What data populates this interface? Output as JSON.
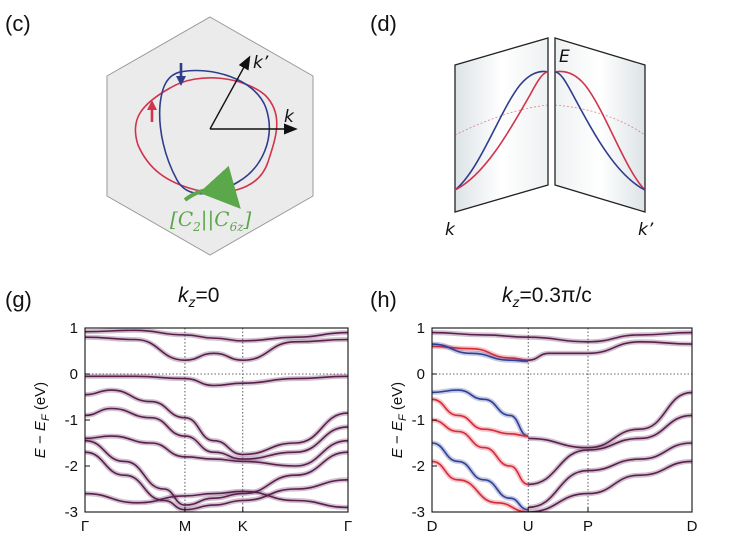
{
  "panel_c": {
    "label": "(c)",
    "k_label": "k",
    "kprime_label": "k’",
    "symmetry_open": "[",
    "symmetry_c2": "C",
    "symmetry_c2_sub": "2",
    "symmetry_sep": "||",
    "symmetry_c6": "C",
    "symmetry_c6_sub": "6z",
    "symmetry_close": "]",
    "colors": {
      "red": "#d1344d",
      "blue": "#2f3d8c",
      "green": "#5aa84a",
      "hexagon_fill": "#ebebeb",
      "hexagon_stroke": "#999999"
    }
  },
  "panel_d": {
    "label": "(d)",
    "e_label": "E",
    "k_label": "k",
    "kprime_label": "k’"
  },
  "panel_g": {
    "label": "(g)",
    "title_k": "k",
    "title_sub": "z",
    "title_rest": "=0",
    "ylabel_e": "E",
    "ylabel_minus": " − ",
    "ylabel_ef": "E",
    "ylabel_ef_sub": "F",
    "ylabel_unit": " (eV)",
    "yticks": [
      "1",
      "0",
      "-1",
      "-2",
      "-3"
    ],
    "xticks": [
      "Γ",
      "M",
      "K",
      "Γ"
    ]
  },
  "panel_h": {
    "label": "(h)",
    "title_k": "k",
    "title_sub": "z",
    "title_rest": "=0.3π/c",
    "ylabel_e": "E",
    "ylabel_minus": " − ",
    "ylabel_ef": "E",
    "ylabel_ef_sub": "F",
    "ylabel_unit": " (eV)",
    "yticks": [
      "1",
      "0",
      "-1",
      "-2",
      "-3"
    ],
    "xticks": [
      "D",
      "U",
      "P",
      "D"
    ]
  },
  "chart_data": [
    {
      "type": "line",
      "ylim": [
        -3,
        1
      ],
      "x_ticks": [
        "Γ",
        "M",
        "K",
        "Γ"
      ],
      "x_tick_positions": [
        0,
        0.38,
        0.6,
        1.0
      ],
      "series": [
        {
          "values_x": [
            0,
            0.19,
            0.38,
            0.49,
            0.6,
            0.8,
            1.0
          ],
          "values": [
            0.8,
            0.75,
            0.3,
            0.45,
            0.3,
            0.7,
            0.75
          ]
        },
        {
          "values_x": [
            0,
            0.19,
            0.38,
            0.49,
            0.6,
            0.8,
            1.0
          ],
          "values": [
            0.92,
            0.95,
            0.85,
            0.78,
            0.72,
            0.8,
            0.9
          ]
        },
        {
          "values_x": [
            0,
            0.19,
            0.38,
            0.49,
            0.6,
            0.8,
            1.0
          ],
          "values": [
            -0.05,
            -0.05,
            -0.1,
            -0.25,
            -0.2,
            -0.1,
            -0.05
          ]
        },
        {
          "values_x": [
            0,
            0.1,
            0.25,
            0.38,
            0.49,
            0.6,
            0.8,
            1.0
          ],
          "values": [
            -0.45,
            -0.35,
            -0.6,
            -0.95,
            -1.45,
            -1.75,
            -1.5,
            -0.85
          ]
        },
        {
          "values_x": [
            0,
            0.1,
            0.25,
            0.38,
            0.49,
            0.6,
            0.8,
            1.0
          ],
          "values": [
            -0.9,
            -0.75,
            -0.95,
            -1.35,
            -1.7,
            -1.85,
            -1.7,
            -1.15
          ]
        },
        {
          "values_x": [
            0,
            0.1,
            0.25,
            0.38,
            0.49,
            0.6,
            0.8,
            1.0
          ],
          "values": [
            -1.4,
            -1.35,
            -1.5,
            -1.8,
            -1.85,
            -1.9,
            -2.0,
            -1.45
          ]
        },
        {
          "values_x": [
            0,
            0.15,
            0.3,
            0.38,
            0.49,
            0.6,
            0.8,
            1.0
          ],
          "values": [
            -1.45,
            -1.9,
            -2.5,
            -2.85,
            -2.7,
            -2.6,
            -2.2,
            -1.7
          ]
        },
        {
          "values_x": [
            0,
            0.15,
            0.3,
            0.38,
            0.49,
            0.6,
            0.8,
            1.0
          ],
          "values": [
            -1.7,
            -2.2,
            -2.75,
            -2.95,
            -2.85,
            -2.75,
            -2.5,
            -2.3
          ]
        },
        {
          "values_x": [
            0,
            0.2,
            0.38,
            0.49,
            0.6,
            0.8,
            1.0
          ],
          "values": [
            -2.6,
            -2.8,
            -2.65,
            -2.6,
            -2.55,
            -2.75,
            -2.9
          ]
        }
      ]
    },
    {
      "type": "line",
      "ylim": [
        -3,
        1
      ],
      "x_ticks": [
        "D",
        "U",
        "P",
        "D"
      ],
      "x_tick_positions": [
        0,
        0.37,
        0.6,
        1.0
      ],
      "series": [
        {
          "name_color": "red",
          "values_x": [
            0,
            0.15,
            0.3,
            0.37
          ],
          "values": [
            0.6,
            0.55,
            0.35,
            0.3
          ]
        },
        {
          "name_color": "blue",
          "values_x": [
            0,
            0.15,
            0.3,
            0.37
          ],
          "values": [
            0.65,
            0.45,
            0.3,
            0.28
          ]
        },
        {
          "values_x": [
            0.37,
            0.45,
            0.6,
            0.8,
            1.0
          ],
          "values": [
            0.3,
            0.45,
            0.45,
            0.7,
            0.65
          ]
        },
        {
          "values_x": [
            0,
            0.2,
            0.37,
            0.6,
            0.8,
            1.0
          ],
          "values": [
            0.9,
            0.85,
            0.8,
            0.7,
            0.85,
            0.9
          ]
        },
        {
          "name_color": "blue",
          "values_x": [
            0,
            0.1,
            0.2,
            0.3,
            0.37
          ],
          "values": [
            -0.4,
            -0.35,
            -0.55,
            -0.9,
            -1.35
          ]
        },
        {
          "name_color": "red",
          "values_x": [
            0,
            0.1,
            0.2,
            0.3,
            0.37
          ],
          "values": [
            -0.55,
            -0.9,
            -1.2,
            -1.3,
            -1.35
          ]
        },
        {
          "name_color": "red",
          "values_x": [
            0,
            0.1,
            0.2,
            0.3,
            0.37
          ],
          "values": [
            -1.0,
            -1.25,
            -1.6,
            -2.0,
            -2.4
          ]
        },
        {
          "name_color": "blue",
          "values_x": [
            0,
            0.1,
            0.2,
            0.3,
            0.37
          ],
          "values": [
            -1.5,
            -1.9,
            -2.3,
            -2.7,
            -2.95
          ]
        },
        {
          "name_color": "red",
          "values_x": [
            0,
            0.1,
            0.25,
            0.37
          ],
          "values": [
            -1.9,
            -2.3,
            -2.8,
            -3.0
          ]
        },
        {
          "values_x": [
            0.37,
            0.6,
            0.8,
            1.0
          ],
          "values": [
            -1.4,
            -1.6,
            -1.2,
            -0.4
          ]
        },
        {
          "values_x": [
            0.37,
            0.6,
            0.8,
            1.0
          ],
          "values": [
            -2.4,
            -1.65,
            -1.4,
            -0.9
          ]
        },
        {
          "values_x": [
            0.37,
            0.6,
            0.8,
            1.0
          ],
          "values": [
            -2.9,
            -2.1,
            -1.85,
            -1.5
          ]
        },
        {
          "values_x": [
            0.37,
            0.6,
            0.8,
            1.0
          ],
          "values": [
            -3.0,
            -2.6,
            -2.2,
            -1.9
          ]
        }
      ]
    }
  ]
}
